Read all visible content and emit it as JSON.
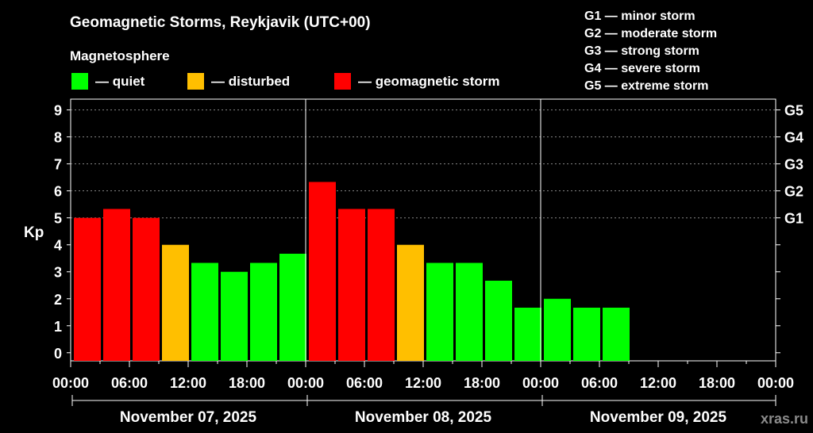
{
  "chart_data": {
    "type": "bar",
    "title": "Geomagnetic Storms, Reykjavik (UTC+00)",
    "legend_title": "Magnetosphere",
    "legend": [
      {
        "key": "quiet",
        "label": "— quiet",
        "color": "#00ff00"
      },
      {
        "key": "disturbed",
        "label": "— disturbed",
        "color": "#ffbf00"
      },
      {
        "key": "storm",
        "label": "— geomagnetic storm",
        "color": "#ff0000"
      }
    ],
    "scale_legend": [
      "G1 — minor storm",
      "G2 — moderate storm",
      "G3 — strong storm",
      "G4 — severe storm",
      "G5 — extreme storm"
    ],
    "ylabel": "Kp",
    "ylim": [
      -0.3,
      9.4
    ],
    "y_ticks": [
      "0",
      "1",
      "2",
      "3",
      "4",
      "5",
      "6",
      "7",
      "8",
      "9"
    ],
    "right_ticks": [
      {
        "level": 5,
        "label": "G1"
      },
      {
        "level": 6,
        "label": "G2"
      },
      {
        "level": 7,
        "label": "G3"
      },
      {
        "level": 8,
        "label": "G4"
      },
      {
        "level": 9,
        "label": "G5"
      }
    ],
    "x_tick_labels": [
      "00:00",
      "06:00",
      "12:00",
      "18:00",
      "00:00",
      "06:00",
      "12:00",
      "18:00",
      "00:00",
      "06:00",
      "12:00",
      "18:00",
      "00:00"
    ],
    "days": [
      "November 07, 2025",
      "November 08, 2025",
      "November 09, 2025"
    ],
    "slots_total": 24,
    "bars": [
      {
        "slot": 0,
        "value": 5.0,
        "level": "storm"
      },
      {
        "slot": 1,
        "value": 5.33,
        "level": "storm"
      },
      {
        "slot": 2,
        "value": 5.0,
        "level": "storm"
      },
      {
        "slot": 3,
        "value": 4.0,
        "level": "disturbed"
      },
      {
        "slot": 4,
        "value": 3.33,
        "level": "quiet"
      },
      {
        "slot": 5,
        "value": 3.0,
        "level": "quiet"
      },
      {
        "slot": 6,
        "value": 3.33,
        "level": "quiet"
      },
      {
        "slot": 7,
        "value": 3.67,
        "level": "quiet"
      },
      {
        "slot": 8,
        "value": 6.33,
        "level": "storm"
      },
      {
        "slot": 9,
        "value": 5.33,
        "level": "storm"
      },
      {
        "slot": 10,
        "value": 5.33,
        "level": "storm"
      },
      {
        "slot": 11,
        "value": 4.0,
        "level": "disturbed"
      },
      {
        "slot": 12,
        "value": 3.33,
        "level": "quiet"
      },
      {
        "slot": 13,
        "value": 3.33,
        "level": "quiet"
      },
      {
        "slot": 14,
        "value": 2.67,
        "level": "quiet"
      },
      {
        "slot": 15,
        "value": 1.67,
        "level": "quiet"
      },
      {
        "slot": 16,
        "value": 2.0,
        "level": "quiet"
      },
      {
        "slot": 17,
        "value": 1.67,
        "level": "quiet"
      },
      {
        "slot": 18,
        "value": 1.67,
        "level": "quiet"
      }
    ],
    "grid": true
  },
  "watermark": "xras.ru"
}
